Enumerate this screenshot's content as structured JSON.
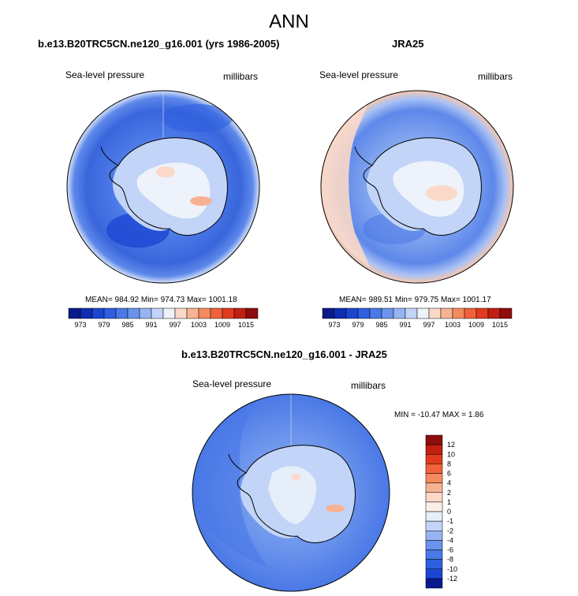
{
  "title": "ANN",
  "panels": [
    {
      "title": "b.e13.B20TRC5CN.ne120_g16.001 (yrs 1986-2005)",
      "left_label": "Sea-level pressure",
      "right_label": "millibars",
      "stats": "MEAN= 984.92  Min= 974.73  Max= 1001.18"
    },
    {
      "title": "JRA25",
      "left_label": "Sea-level pressure",
      "right_label": "millibars",
      "stats": "MEAN= 989.51  Min= 979.75  Max= 1001.17"
    },
    {
      "title": "b.e13.B20TRC5CN.ne120_g16.001 - JRA25",
      "left_label": "Sea-level pressure",
      "right_label": "millibars",
      "stats": "MIN = -10.47 MAX =   1.86"
    }
  ],
  "chart_data": [
    {
      "type": "heatmap",
      "title": "b.e13.B20TRC5CN.ne120_g16.001 (yrs 1986-2005)",
      "variable": "Sea-level pressure",
      "units": "millibars",
      "mean": 984.92,
      "min": 974.73,
      "max": 1001.18,
      "colorbar": {
        "orientation": "horizontal",
        "levels": [
          973,
          976,
          979,
          982,
          985,
          988,
          991,
          994,
          997,
          1000,
          1003,
          1006,
          1009,
          1012,
          1015
        ],
        "tick_labels": [
          "973",
          "979",
          "985",
          "991",
          "997",
          "1003",
          "1009",
          "1015"
        ],
        "colors": [
          "#0a1a8c",
          "#0f2db4",
          "#1c46d2",
          "#2e5fe0",
          "#4a78e6",
          "#6a93ec",
          "#96b4f2",
          "#c2d4f7",
          "#eef2fa",
          "#fbd8c8",
          "#f7b293",
          "#f58a5e",
          "#f2613a",
          "#e23a1e",
          "#c01f12",
          "#8f0c0c"
        ]
      }
    },
    {
      "type": "heatmap",
      "title": "JRA25",
      "variable": "Sea-level pressure",
      "units": "millibars",
      "mean": 989.51,
      "min": 979.75,
      "max": 1001.17,
      "colorbar": {
        "orientation": "horizontal",
        "levels": [
          973,
          976,
          979,
          982,
          985,
          988,
          991,
          994,
          997,
          1000,
          1003,
          1006,
          1009,
          1012,
          1015
        ],
        "tick_labels": [
          "973",
          "979",
          "985",
          "991",
          "997",
          "1003",
          "1009",
          "1015"
        ],
        "colors": [
          "#0a1a8c",
          "#0f2db4",
          "#1c46d2",
          "#2e5fe0",
          "#4a78e6",
          "#6a93ec",
          "#96b4f2",
          "#c2d4f7",
          "#eef2fa",
          "#fbd8c8",
          "#f7b293",
          "#f58a5e",
          "#f2613a",
          "#e23a1e",
          "#c01f12",
          "#8f0c0c"
        ]
      }
    },
    {
      "type": "heatmap",
      "title": "b.e13.B20TRC5CN.ne120_g16.001 - JRA25",
      "variable": "Sea-level pressure",
      "units": "millibars",
      "min": -10.47,
      "max": 1.86,
      "colorbar": {
        "orientation": "vertical",
        "tick_labels": [
          "12",
          "10",
          "8",
          "6",
          "4",
          "2",
          "1",
          "0",
          "-1",
          "-2",
          "-4",
          "-6",
          "-8",
          "-10",
          "-12"
        ],
        "colors": [
          "#8f0c0c",
          "#c01f12",
          "#e23a1e",
          "#f2613a",
          "#f58a5e",
          "#f7b293",
          "#fbd8c8",
          "#fdeee6",
          "#e6eef9",
          "#c2d4f7",
          "#96b4f2",
          "#6a93ec",
          "#4a78e6",
          "#2e5fe0",
          "#1c46d2",
          "#0a1a8c"
        ]
      }
    }
  ]
}
